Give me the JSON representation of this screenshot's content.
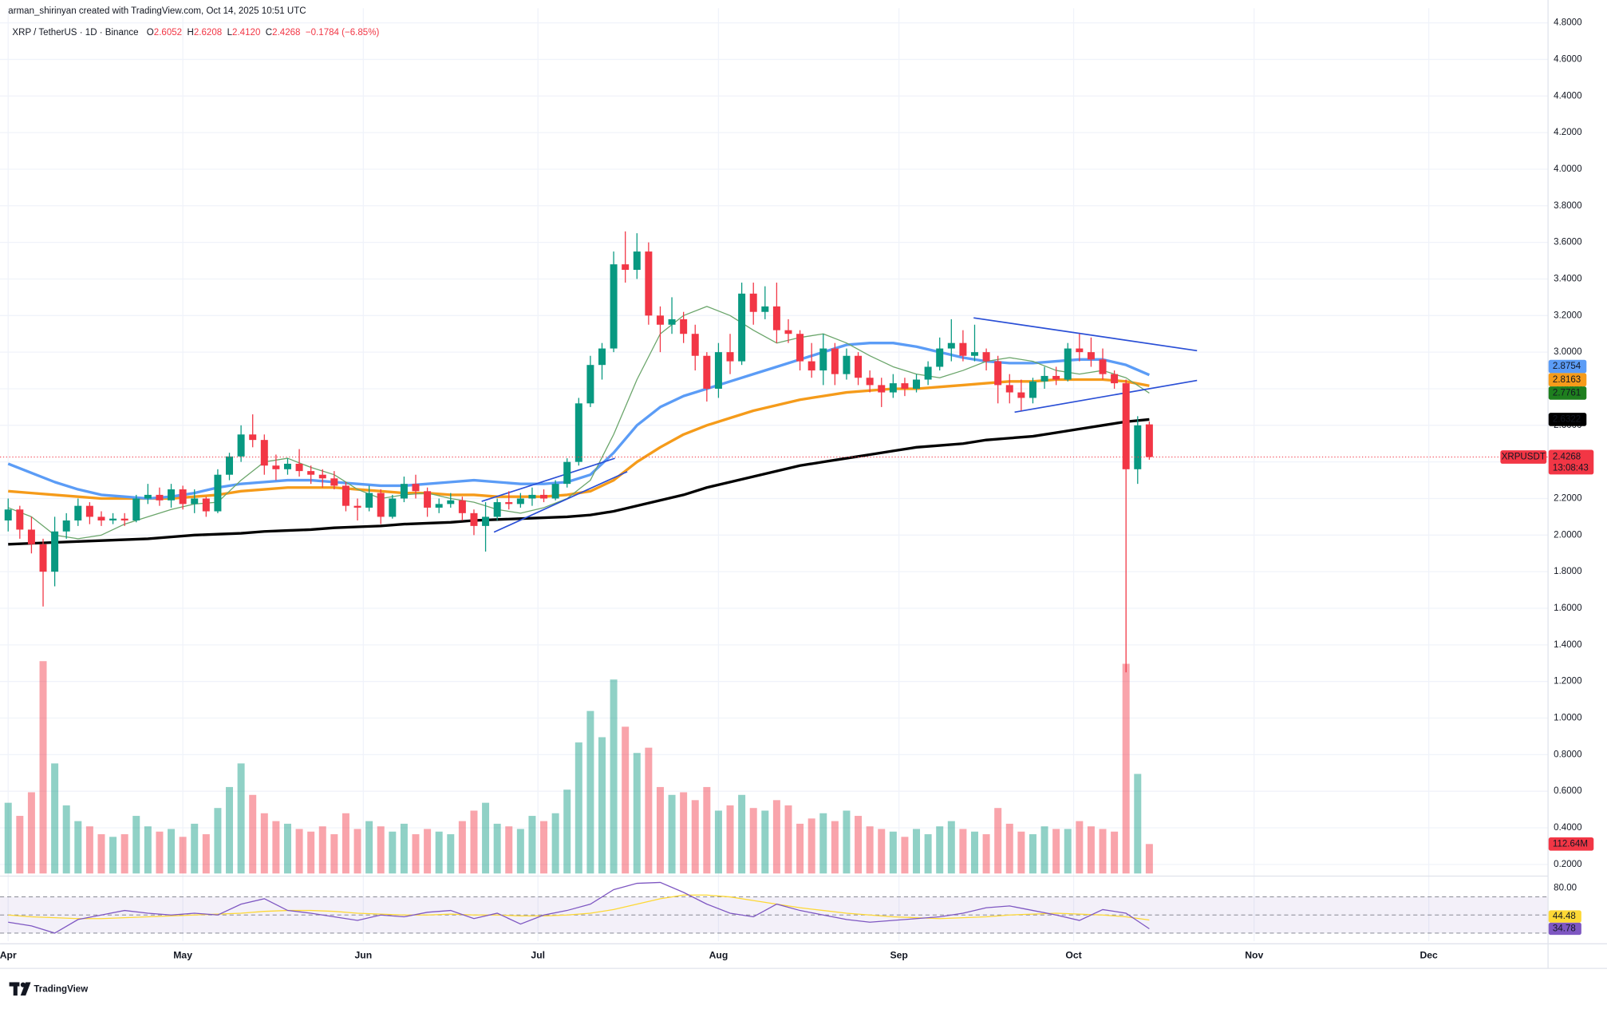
{
  "header": {
    "attribution": "arman_shirinyan created with TradingView.com, Oct 14, 2025 10:51 UTC",
    "symbol": "XRP / TetherUS · 1D · Binance",
    "ohlc": [
      {
        "key": "O",
        "value": "2.6052"
      },
      {
        "key": "H",
        "value": "2.6208"
      },
      {
        "key": "L",
        "value": "2.4120"
      },
      {
        "key": "C",
        "value": "2.4268"
      }
    ],
    "change": "−0.1784 (−6.85%)"
  },
  "chart_data": [
    {
      "type": "candlestick",
      "xlim": [
        -1.4,
        264.4
      ],
      "xticks": [
        {
          "value": 0,
          "label": "Apr"
        },
        {
          "value": 30,
          "label": "May"
        },
        {
          "value": 61,
          "label": "Jun"
        },
        {
          "value": 91,
          "label": "Jul"
        },
        {
          "value": 122,
          "label": "Aug"
        },
        {
          "value": 153,
          "label": "Sep"
        },
        {
          "value": 183,
          "label": "Oct"
        },
        {
          "value": 214,
          "label": "Nov"
        },
        {
          "value": 244,
          "label": "Dec"
        }
      ],
      "ylim": [
        0.15,
        4.88
      ],
      "yticks": [
        {
          "value": 0.2,
          "label": "0.2000"
        },
        {
          "value": 0.4,
          "label": "0.4000"
        },
        {
          "value": 0.6,
          "label": "0.6000"
        },
        {
          "value": 0.8,
          "label": "0.8000"
        },
        {
          "value": 1.0,
          "label": "1.0000"
        },
        {
          "value": 1.2,
          "label": "1.2000"
        },
        {
          "value": 1.4,
          "label": "1.4000"
        },
        {
          "value": 1.6,
          "label": "1.6000"
        },
        {
          "value": 1.8,
          "label": "1.8000"
        },
        {
          "value": 2.0,
          "label": "2.0000"
        },
        {
          "value": 2.2,
          "label": "2.2000"
        },
        {
          "value": 2.4,
          "label": "2.4000"
        },
        {
          "value": 2.6,
          "label": "2.6000"
        },
        {
          "value": 2.8,
          "label": "2.8000"
        },
        {
          "value": 3.0,
          "label": "3.0000"
        },
        {
          "value": 3.2,
          "label": "3.2000"
        },
        {
          "value": 3.4,
          "label": "3.4000"
        },
        {
          "value": 3.6,
          "label": "3.6000"
        },
        {
          "value": 3.8,
          "label": "3.8000"
        },
        {
          "value": 4.0,
          "label": "4.0000"
        },
        {
          "value": 4.2,
          "label": "4.2000"
        },
        {
          "value": 4.4,
          "label": "4.4000"
        },
        {
          "value": 4.6,
          "label": "4.6000"
        },
        {
          "value": 4.8,
          "label": "4.8000"
        }
      ],
      "grid": true,
      "up_color": "#089981",
      "down_color": "#f23645",
      "x": [
        0,
        2,
        4,
        6,
        8,
        10,
        12,
        14,
        16,
        18,
        20,
        22,
        24,
        26,
        28,
        30,
        32,
        34,
        36,
        38,
        40,
        42,
        44,
        46,
        48,
        50,
        52,
        54,
        56,
        58,
        60,
        62,
        64,
        66,
        68,
        70,
        72,
        74,
        76,
        78,
        80,
        82,
        84,
        86,
        88,
        90,
        92,
        94,
        96,
        98,
        100,
        102,
        104,
        106,
        108,
        110,
        112,
        114,
        116,
        118,
        120,
        122,
        124,
        126,
        128,
        130,
        132,
        134,
        136,
        138,
        140,
        142,
        144,
        146,
        148,
        150,
        152,
        154,
        156,
        158,
        160,
        162,
        164,
        166,
        168,
        170,
        172,
        174,
        176,
        178,
        180,
        182,
        184,
        186,
        188,
        190,
        192,
        194,
        196
      ],
      "open": [
        2.08,
        2.14,
        2.03,
        1.95,
        1.8,
        2.02,
        2.08,
        2.16,
        2.1,
        2.08,
        2.09,
        2.08,
        2.2,
        2.22,
        2.19,
        2.25,
        2.17,
        2.2,
        2.13,
        2.33,
        2.43,
        2.55,
        2.52,
        2.38,
        2.36,
        2.39,
        2.35,
        2.33,
        2.31,
        2.27,
        2.16,
        2.15,
        2.23,
        2.1,
        2.2,
        2.28,
        2.24,
        2.15,
        2.17,
        2.19,
        2.12,
        2.05,
        2.1,
        2.18,
        2.17,
        2.2,
        2.22,
        2.2,
        2.28,
        2.4,
        2.72,
        2.93,
        3.02,
        3.48,
        3.45,
        3.55,
        3.2,
        3.15,
        3.18,
        3.1,
        2.98,
        2.8,
        3.0,
        2.95,
        3.32,
        3.22,
        3.25,
        3.12,
        3.1,
        2.95,
        2.9,
        3.02,
        2.88,
        2.98,
        2.86,
        2.82,
        2.78,
        2.83,
        2.8,
        2.85,
        2.92,
        3.02,
        3.05,
        2.98,
        3.0,
        2.95,
        2.82,
        2.78,
        2.75,
        2.84,
        2.87,
        2.85,
        3.02,
        3.0,
        2.96,
        2.88,
        2.83,
        2.36,
        2.6052
      ],
      "high": [
        2.2,
        2.16,
        2.1,
        1.98,
        2.1,
        2.12,
        2.2,
        2.18,
        2.13,
        2.12,
        2.12,
        2.22,
        2.28,
        2.26,
        2.28,
        2.27,
        2.25,
        2.21,
        2.36,
        2.45,
        2.6,
        2.66,
        2.55,
        2.44,
        2.42,
        2.47,
        2.38,
        2.36,
        2.35,
        2.29,
        2.2,
        2.27,
        2.25,
        2.22,
        2.32,
        2.33,
        2.26,
        2.2,
        2.23,
        2.21,
        2.14,
        2.18,
        2.2,
        2.24,
        2.23,
        2.26,
        2.25,
        2.3,
        2.42,
        2.75,
        2.98,
        3.05,
        3.55,
        3.66,
        3.65,
        3.6,
        3.25,
        3.3,
        3.22,
        3.15,
        3.0,
        3.05,
        3.1,
        3.38,
        3.38,
        3.36,
        3.38,
        3.18,
        3.12,
        3.05,
        3.1,
        3.05,
        3.02,
        3.0,
        2.9,
        2.86,
        2.88,
        2.86,
        2.88,
        2.95,
        3.08,
        3.18,
        3.12,
        3.15,
        3.02,
        2.98,
        2.88,
        2.85,
        2.86,
        2.92,
        2.92,
        3.05,
        3.1,
        3.08,
        3.02,
        2.9,
        2.85,
        2.65,
        2.6208
      ],
      "low": [
        2.02,
        1.98,
        1.9,
        1.61,
        1.72,
        1.98,
        2.05,
        2.06,
        2.05,
        2.06,
        2.05,
        2.07,
        2.17,
        2.16,
        2.15,
        2.14,
        2.12,
        2.1,
        2.12,
        2.3,
        2.4,
        2.48,
        2.33,
        2.3,
        2.33,
        2.32,
        2.28,
        2.26,
        2.25,
        2.13,
        2.08,
        2.13,
        2.06,
        2.09,
        2.18,
        2.2,
        2.1,
        2.12,
        2.15,
        2.08,
        2.0,
        1.91,
        2.08,
        2.14,
        2.15,
        2.16,
        2.18,
        2.19,
        2.26,
        2.38,
        2.7,
        2.85,
        3.0,
        3.38,
        3.4,
        3.15,
        3.0,
        3.1,
        3.05,
        2.9,
        2.73,
        2.75,
        2.88,
        2.93,
        3.15,
        3.18,
        3.05,
        3.05,
        2.9,
        2.86,
        2.82,
        2.82,
        2.85,
        2.82,
        2.78,
        2.7,
        2.75,
        2.76,
        2.78,
        2.82,
        2.9,
        2.95,
        2.95,
        2.95,
        2.9,
        2.72,
        2.72,
        2.68,
        2.72,
        2.8,
        2.82,
        2.84,
        2.95,
        2.92,
        2.85,
        2.8,
        1.25,
        2.28,
        2.412
      ],
      "close": [
        2.14,
        2.03,
        1.95,
        1.8,
        2.02,
        2.08,
        2.16,
        2.1,
        2.08,
        2.09,
        2.08,
        2.2,
        2.22,
        2.19,
        2.25,
        2.17,
        2.2,
        2.13,
        2.33,
        2.43,
        2.55,
        2.52,
        2.38,
        2.36,
        2.39,
        2.35,
        2.33,
        2.31,
        2.27,
        2.16,
        2.15,
        2.23,
        2.1,
        2.2,
        2.28,
        2.24,
        2.15,
        2.17,
        2.19,
        2.12,
        2.05,
        2.1,
        2.18,
        2.17,
        2.2,
        2.22,
        2.2,
        2.28,
        2.4,
        2.72,
        2.93,
        3.02,
        3.48,
        3.45,
        3.55,
        3.2,
        3.15,
        3.18,
        3.1,
        2.98,
        2.8,
        3.0,
        2.95,
        3.32,
        3.22,
        3.25,
        3.12,
        3.1,
        2.95,
        2.9,
        3.02,
        2.88,
        2.98,
        2.86,
        2.82,
        2.78,
        2.83,
        2.8,
        2.85,
        2.92,
        3.02,
        3.05,
        2.98,
        3.0,
        2.95,
        2.82,
        2.78,
        2.75,
        2.84,
        2.87,
        2.85,
        3.02,
        3.0,
        2.96,
        2.88,
        2.83,
        2.36,
        2.6,
        2.4268
      ],
      "volume": {
        "axis": "y2",
        "values": [
          270,
          220,
          310,
          810,
          420,
          260,
          200,
          180,
          150,
          140,
          150,
          220,
          180,
          160,
          170,
          140,
          190,
          150,
          250,
          330,
          420,
          300,
          230,
          200,
          190,
          170,
          160,
          180,
          150,
          230,
          170,
          200,
          180,
          160,
          190,
          150,
          170,
          160,
          150,
          200,
          240,
          270,
          190,
          180,
          170,
          220,
          200,
          230,
          320,
          500,
          620,
          520,
          740,
          560,
          460,
          480,
          330,
          300,
          310,
          280,
          330,
          240,
          260,
          300,
          250,
          240,
          280,
          260,
          190,
          210,
          230,
          200,
          240,
          220,
          180,
          170,
          160,
          140,
          170,
          150,
          180,
          200,
          170,
          160,
          150,
          250,
          190,
          160,
          150,
          180,
          170,
          170,
          200,
          180,
          170,
          160,
          800,
          380,
          112.64
        ],
        "last_label": "112.64M",
        "label_color": "#f23645"
      },
      "y2lim": [
        0,
        3300
      ],
      "overlay_x": [
        0,
        4,
        8,
        12,
        16,
        20,
        24,
        28,
        32,
        36,
        40,
        44,
        48,
        52,
        56,
        60,
        64,
        68,
        72,
        76,
        80,
        84,
        88,
        92,
        96,
        100,
        104,
        108,
        112,
        116,
        120,
        124,
        128,
        132,
        136,
        140,
        144,
        148,
        152,
        156,
        160,
        164,
        168,
        172,
        176,
        180,
        184,
        188,
        192,
        196
      ],
      "overlays": [
        {
          "color": "#000000",
          "width": 2.6,
          "values": [
            1.95,
            1.955,
            1.96,
            1.965,
            1.97,
            1.975,
            1.98,
            1.99,
            2.0,
            2.005,
            2.01,
            2.02,
            2.025,
            2.03,
            2.04,
            2.045,
            2.05,
            2.06,
            2.065,
            2.07,
            2.08,
            2.085,
            2.09,
            2.095,
            2.1,
            2.11,
            2.13,
            2.16,
            2.19,
            2.22,
            2.26,
            2.29,
            2.32,
            2.35,
            2.38,
            2.4,
            2.42,
            2.44,
            2.46,
            2.48,
            2.49,
            2.5,
            2.52,
            2.53,
            2.54,
            2.56,
            2.58,
            2.6,
            2.62,
            2.6322
          ]
        },
        {
          "color": "#f59b1a",
          "width": 2.6,
          "values": [
            2.24,
            2.23,
            2.22,
            2.21,
            2.2,
            2.2,
            2.2,
            2.2,
            2.21,
            2.22,
            2.24,
            2.25,
            2.26,
            2.26,
            2.26,
            2.25,
            2.24,
            2.23,
            2.23,
            2.22,
            2.22,
            2.21,
            2.21,
            2.21,
            2.22,
            2.24,
            2.3,
            2.4,
            2.48,
            2.55,
            2.6,
            2.64,
            2.68,
            2.71,
            2.74,
            2.76,
            2.78,
            2.79,
            2.8,
            2.8,
            2.81,
            2.82,
            2.83,
            2.84,
            2.84,
            2.85,
            2.85,
            2.85,
            2.84,
            2.8163
          ]
        },
        {
          "color": "#5b9cf6",
          "width": 2.6,
          "values": [
            2.39,
            2.34,
            2.29,
            2.25,
            2.22,
            2.21,
            2.2,
            2.21,
            2.23,
            2.26,
            2.28,
            2.29,
            2.3,
            2.3,
            2.29,
            2.28,
            2.27,
            2.27,
            2.28,
            2.29,
            2.3,
            2.29,
            2.28,
            2.28,
            2.29,
            2.33,
            2.45,
            2.6,
            2.7,
            2.76,
            2.8,
            2.84,
            2.88,
            2.92,
            2.96,
            3.0,
            3.04,
            3.05,
            3.05,
            3.03,
            3.0,
            2.97,
            2.95,
            2.94,
            2.94,
            2.95,
            2.96,
            2.96,
            2.93,
            2.8754
          ]
        },
        {
          "color": "#6aa56a",
          "width": 1,
          "values": [
            2.15,
            2.1,
            2.0,
            1.98,
            2.0,
            2.06,
            2.1,
            2.14,
            2.17,
            2.18,
            2.3,
            2.4,
            2.42,
            2.37,
            2.33,
            2.25,
            2.2,
            2.22,
            2.23,
            2.2,
            2.18,
            2.14,
            2.12,
            2.15,
            2.2,
            2.3,
            2.55,
            2.85,
            3.1,
            3.2,
            3.25,
            3.2,
            3.12,
            3.05,
            3.08,
            3.1,
            3.05,
            2.98,
            2.92,
            2.88,
            2.86,
            2.9,
            2.95,
            2.97,
            2.95,
            2.9,
            2.88,
            2.9,
            2.86,
            2.7761
          ]
        }
      ],
      "price_labels": [
        {
          "label": "2.8754",
          "value": 2.8754,
          "color": "#5b9cf6"
        },
        {
          "label": "2.8163",
          "value": 2.8163,
          "color": "#f59b1a"
        },
        {
          "label": "2.7761",
          "value": 2.7761,
          "color": "#1e7f1e"
        },
        {
          "label": "2.6322",
          "value": 2.6322,
          "color": "#000000"
        }
      ],
      "last": {
        "name": "XRPUSDT",
        "label": "2.4268",
        "value": 2.4268,
        "countdown": "13:08:43",
        "color": "#f23645"
      }
    },
    {
      "type": "line",
      "x": [
        0,
        4,
        8,
        12,
        16,
        20,
        24,
        28,
        32,
        36,
        40,
        44,
        48,
        52,
        56,
        60,
        64,
        68,
        72,
        76,
        80,
        84,
        88,
        92,
        96,
        100,
        104,
        108,
        112,
        116,
        120,
        124,
        128,
        132,
        136,
        140,
        144,
        148,
        152,
        156,
        160,
        164,
        168,
        172,
        176,
        180,
        184,
        188,
        192,
        196
      ],
      "xlim": [
        -1.4,
        264.4
      ],
      "ylim": [
        21,
        89
      ],
      "yticks": [
        {
          "value": 80,
          "label": "80.00"
        }
      ],
      "levels": [
        70,
        50,
        30
      ],
      "band_color": "#7e57c2",
      "series": [
        {
          "color": "#7e57c2",
          "text_color": "#ffffff",
          "label": "34.78",
          "values": [
            42,
            38,
            30,
            45,
            50,
            55,
            52,
            50,
            52,
            50,
            62,
            68,
            55,
            52,
            48,
            44,
            50,
            48,
            53,
            55,
            46,
            52,
            40,
            50,
            55,
            62,
            78,
            85,
            86,
            75,
            62,
            52,
            48,
            62,
            55,
            50,
            45,
            42,
            44,
            46,
            48,
            52,
            58,
            60,
            55,
            50,
            44,
            56,
            52,
            34.78
          ]
        },
        {
          "color": "#fdd835",
          "text_color": "#131722",
          "label": "44.48",
          "values": [
            50,
            48,
            47,
            46,
            46,
            47,
            48,
            49,
            50,
            51,
            52,
            54,
            55,
            55,
            54,
            52,
            51,
            50,
            50,
            51,
            50,
            50,
            49,
            49,
            50,
            52,
            56,
            62,
            68,
            72,
            72,
            70,
            66,
            62,
            58,
            55,
            52,
            50,
            48,
            47,
            46,
            47,
            48,
            50,
            51,
            52,
            51,
            50,
            48,
            44.48
          ]
        }
      ]
    }
  ],
  "footer": {
    "brand": "TradingView"
  }
}
